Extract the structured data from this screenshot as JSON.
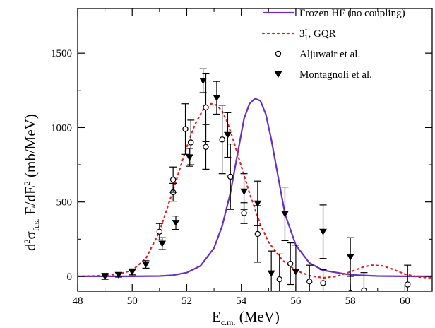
{
  "chart_data": {
    "type": "line",
    "xlim": [
      48,
      61
    ],
    "ylim": [
      -100,
      1800
    ],
    "x_ticks": [
      48,
      50,
      52,
      54,
      56,
      58,
      60
    ],
    "y_ticks": [
      0,
      500,
      1000,
      1500
    ],
    "legend_position": "top-right",
    "grid": false,
    "xlabel": {
      "main": "E",
      "sub": "c.m.",
      "rest": " (MeV)"
    },
    "ylabel": {
      "p1": "d",
      "sup1": "2",
      "p2": "σ",
      "sub": "fus.",
      "p3": " E/dE",
      "sup2": "2",
      "p4": " (mb/MeV)"
    },
    "series": [
      {
        "name": "Frozen HF (no coupling)",
        "style": "solid-line",
        "color": "#6a2fc0",
        "x": [
          48,
          50,
          51,
          51.5,
          52,
          52.5,
          53,
          53.3,
          53.6,
          53.9,
          54.1,
          54.3,
          54.5,
          54.7,
          54.9,
          55.1,
          55.3,
          55.6,
          56,
          56.5,
          57,
          58,
          59,
          60,
          61
        ],
        "y": [
          0,
          0,
          2,
          8,
          25,
          70,
          190,
          340,
          560,
          860,
          1060,
          1160,
          1195,
          1180,
          1090,
          920,
          720,
          420,
          210,
          90,
          40,
          10,
          2,
          0,
          0
        ]
      },
      {
        "name": "3⁻₁, GQR",
        "label_main": "3",
        "label_sup": "-",
        "label_sub": "1",
        "label_rest": ", GQR",
        "style": "dotted-line",
        "color": "#e02020",
        "x": [
          48,
          49,
          49.5,
          50,
          50.5,
          51,
          51.5,
          52,
          52.3,
          52.6,
          52.9,
          53.1,
          53.3,
          53.5,
          53.7,
          54,
          54.3,
          54.7,
          55,
          55.5,
          56,
          56.5,
          57,
          57.5,
          58,
          58.5,
          58.8,
          59.2,
          59.6,
          60,
          60.5,
          61
        ],
        "y": [
          0,
          5,
          15,
          40,
          120,
          300,
          580,
          870,
          1020,
          1120,
          1160,
          1150,
          1110,
          1030,
          920,
          740,
          560,
          350,
          230,
          110,
          40,
          5,
          -10,
          0,
          30,
          65,
          75,
          70,
          45,
          15,
          -5,
          -10
        ]
      },
      {
        "name": "Aljuwair et al.",
        "marker": "open-circle",
        "points": [
          {
            "x": 51.0,
            "y": 300,
            "err": 55
          },
          {
            "x": 51.5,
            "y": 565,
            "err": 60
          },
          {
            "x": 51.5,
            "y": 650,
            "err": 85
          },
          {
            "x": 51.95,
            "y": 990,
            "err": 170
          },
          {
            "x": 52.15,
            "y": 900,
            "err": 150
          },
          {
            "x": 52.7,
            "y": 870,
            "err": 150
          },
          {
            "x": 52.7,
            "y": 1135,
            "err": 230
          },
          {
            "x": 53.3,
            "y": 920,
            "err": 230
          },
          {
            "x": 53.6,
            "y": 670,
            "err": 220
          },
          {
            "x": 54.1,
            "y": 425,
            "err": 70
          },
          {
            "x": 54.6,
            "y": 285,
            "err": 190
          },
          {
            "x": 55.4,
            "y": -20,
            "err": 170
          },
          {
            "x": 55.8,
            "y": 85,
            "err": 140
          },
          {
            "x": 56.5,
            "y": -35,
            "err": 110
          },
          {
            "x": 57.0,
            "y": -45,
            "err": 90
          },
          {
            "x": 58.0,
            "y": -110,
            "err": 110
          },
          {
            "x": 58.5,
            "y": -95,
            "err": 120
          },
          {
            "x": 60.1,
            "y": -55,
            "err": 130
          }
        ]
      },
      {
        "name": "Montagnoli et al.",
        "marker": "filled-triangle-down",
        "points": [
          {
            "x": 49.0,
            "y": 0,
            "err": 20
          },
          {
            "x": 49.5,
            "y": 10,
            "err": 15
          },
          {
            "x": 50.0,
            "y": 30,
            "err": 20
          },
          {
            "x": 50.5,
            "y": 80,
            "err": 25
          },
          {
            "x": 51.1,
            "y": 220,
            "err": 40
          },
          {
            "x": 51.6,
            "y": 360,
            "err": 45
          },
          {
            "x": 52.1,
            "y": 800,
            "err": 60
          },
          {
            "x": 52.6,
            "y": 1315,
            "err": 80
          },
          {
            "x": 53.1,
            "y": 1200,
            "err": 110
          },
          {
            "x": 53.5,
            "y": 950,
            "err": 150
          },
          {
            "x": 54.1,
            "y": 570,
            "err": 120
          },
          {
            "x": 54.6,
            "y": 490,
            "err": 150
          },
          {
            "x": 55.1,
            "y": 20,
            "err": 150
          },
          {
            "x": 55.6,
            "y": 420,
            "err": 180
          },
          {
            "x": 56.0,
            "y": 30,
            "err": 180
          },
          {
            "x": 57.0,
            "y": 300,
            "err": 180
          },
          {
            "x": 58.0,
            "y": 130,
            "err": 130
          }
        ]
      }
    ]
  }
}
